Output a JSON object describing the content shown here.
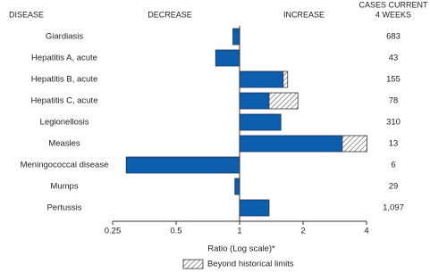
{
  "chart_data": {
    "type": "bar",
    "headers": {
      "disease": "DISEASE",
      "decrease": "DECREASE",
      "increase": "INCREASE",
      "cases": [
        "CASES CURRENT",
        "4 WEEKS"
      ]
    },
    "categories": [
      "Giardiasis",
      "Hepatitis A, acute",
      "Hepatitis B, acute",
      "Hepatitis C, acute",
      "Legionellosis",
      "Measles",
      "Meningococcal disease",
      "Mumps",
      "Pertussis"
    ],
    "values": [
      0.93,
      0.77,
      1.69,
      1.89,
      1.57,
      4.02,
      0.29,
      0.95,
      1.38
    ],
    "historical_limits": [
      null,
      null,
      1.61,
      1.38,
      null,
      3.07,
      null,
      null,
      null
    ],
    "cases": [
      "683",
      "43",
      "155",
      "78",
      "310",
      "13",
      "6",
      "29",
      "1,097"
    ],
    "color": "#0d5fae",
    "log_scale": true,
    "xlim": [
      0.25,
      4
    ],
    "xticks": [
      0.25,
      0.5,
      1,
      2,
      4
    ],
    "xlabel": "Ratio (Log scale)*",
    "legend": "Beyond historical limits"
  }
}
